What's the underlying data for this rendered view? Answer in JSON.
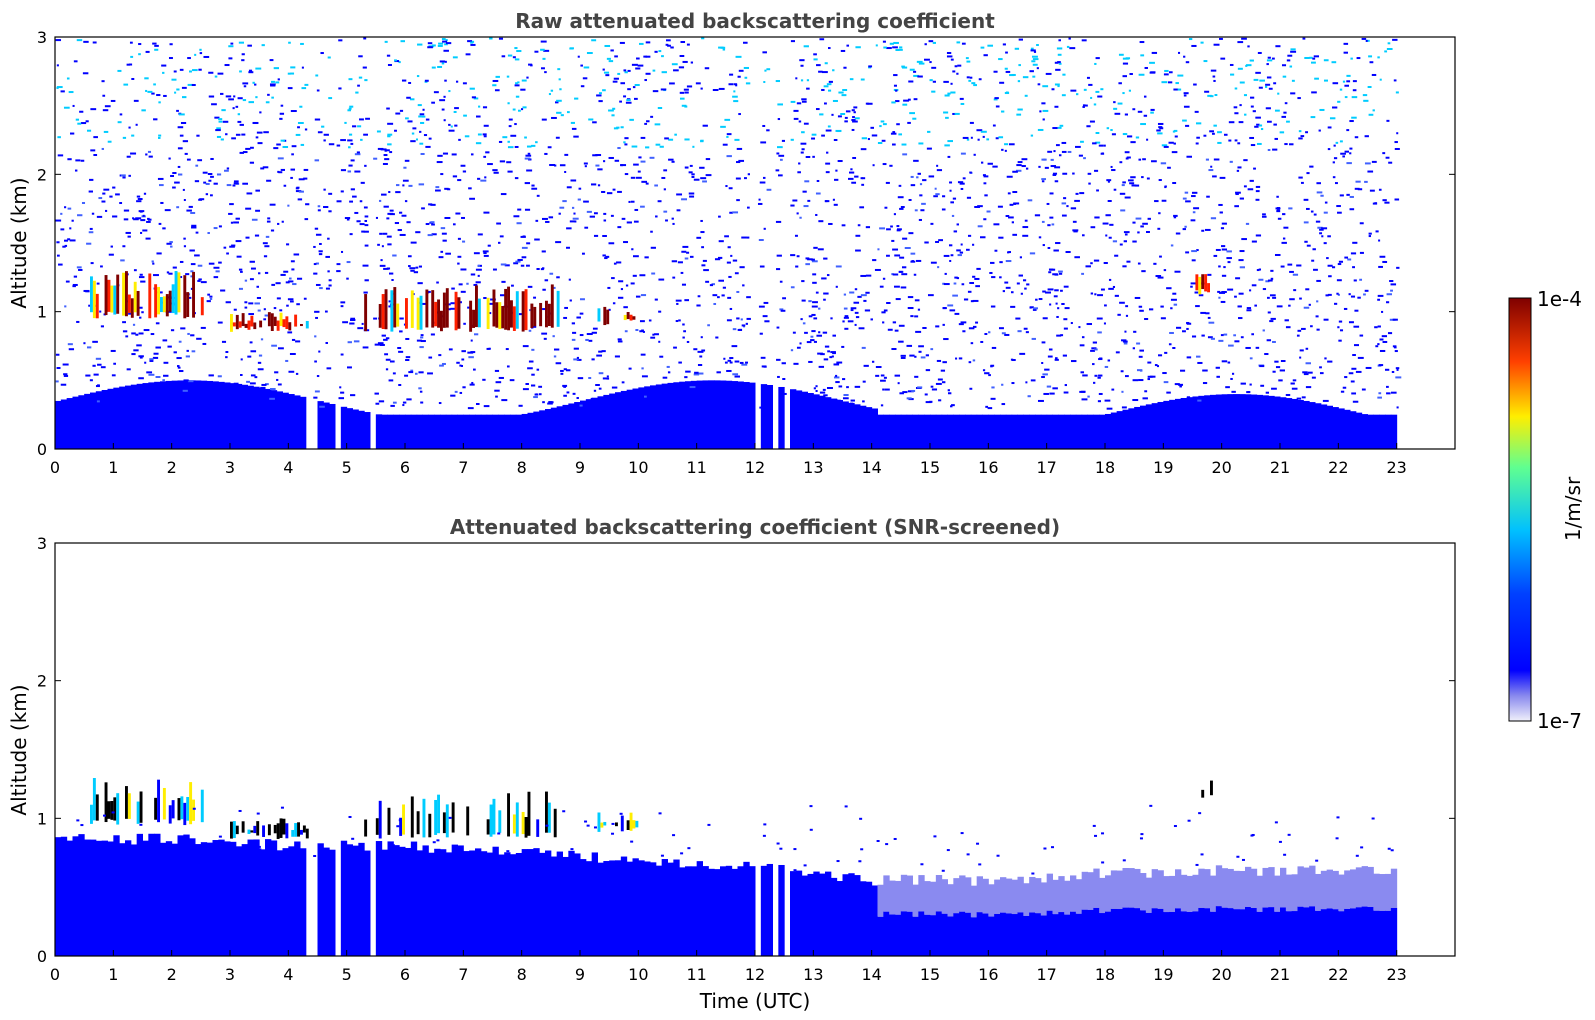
{
  "colors": {
    "dark_red": "#7f0000",
    "red": "#ff2000",
    "yellow": "#ffee00",
    "cyan": "#00ccff",
    "blue": "#0000ff",
    "pale": "#eaeaf8"
  },
  "colorbar": {
    "max_label": "1e-4",
    "min_label": "1e-7",
    "unit_label": "1/m/sr",
    "scale": "log",
    "range": [
      1e-07,
      0.0001
    ]
  },
  "chart_data": [
    {
      "type": "heatmap",
      "title": "Raw attenuated backscattering coefficient",
      "xlabel": "",
      "ylabel": "Altitude (km)",
      "xlim": [
        0,
        24
      ],
      "ylim": [
        0,
        3
      ],
      "xticks": [
        "0",
        "1",
        "2",
        "3",
        "4",
        "5",
        "6",
        "7",
        "8",
        "9",
        "10",
        "11",
        "12",
        "13",
        "14",
        "15",
        "16",
        "17",
        "18",
        "19",
        "20",
        "21",
        "22",
        "23"
      ],
      "yticks": [
        "0",
        "1",
        "2",
        "3"
      ],
      "data_end_hour": 23,
      "gaps_hours": [
        [
          4.3,
          4.42
        ],
        [
          4.7,
          4.82
        ],
        [
          5.33,
          5.45
        ],
        [
          11.9,
          12.05
        ],
        [
          12.2,
          12.35
        ],
        [
          12.47,
          12.58
        ]
      ],
      "cloud_layers": [
        {
          "t_start": 0.6,
          "t_end": 2.5,
          "alt_base_km": 0.95,
          "alt_top_km": 1.3
        },
        {
          "t_start": 3.0,
          "t_end": 4.3,
          "alt_base_km": 0.85,
          "alt_top_km": 1.0
        },
        {
          "t_start": 5.3,
          "t_end": 8.6,
          "alt_base_km": 0.85,
          "alt_top_km": 1.2
        },
        {
          "t_start": 9.3,
          "t_end": 10.0,
          "alt_base_km": 0.9,
          "alt_top_km": 1.05
        },
        {
          "t_start": 19.55,
          "t_end": 19.85,
          "alt_base_km": 1.12,
          "alt_top_km": 1.28
        }
      ]
    },
    {
      "type": "heatmap",
      "title": "Attenuated backscattering coefficient (SNR-screened)",
      "xlabel": "Time (UTC)",
      "ylabel": "Altitude (km)",
      "xlim": [
        0,
        24
      ],
      "ylim": [
        0,
        3
      ],
      "xticks": [
        "0",
        "1",
        "2",
        "3",
        "4",
        "5",
        "6",
        "7",
        "8",
        "9",
        "10",
        "11",
        "12",
        "13",
        "14",
        "15",
        "16",
        "17",
        "18",
        "19",
        "20",
        "21",
        "22",
        "23"
      ],
      "yticks": [
        "0",
        "1",
        "2",
        "3"
      ],
      "data_end_hour": 23,
      "boundary_layer_top_km": [
        [
          0,
          0.85
        ],
        [
          2,
          0.85
        ],
        [
          4,
          0.8
        ],
        [
          6,
          0.8
        ],
        [
          8,
          0.75
        ],
        [
          10,
          0.7
        ],
        [
          12,
          0.65
        ],
        [
          13,
          0.6
        ],
        [
          14,
          0.55
        ],
        [
          16,
          0.55
        ],
        [
          18,
          0.6
        ],
        [
          20,
          0.62
        ],
        [
          23,
          0.62
        ]
      ]
    }
  ]
}
